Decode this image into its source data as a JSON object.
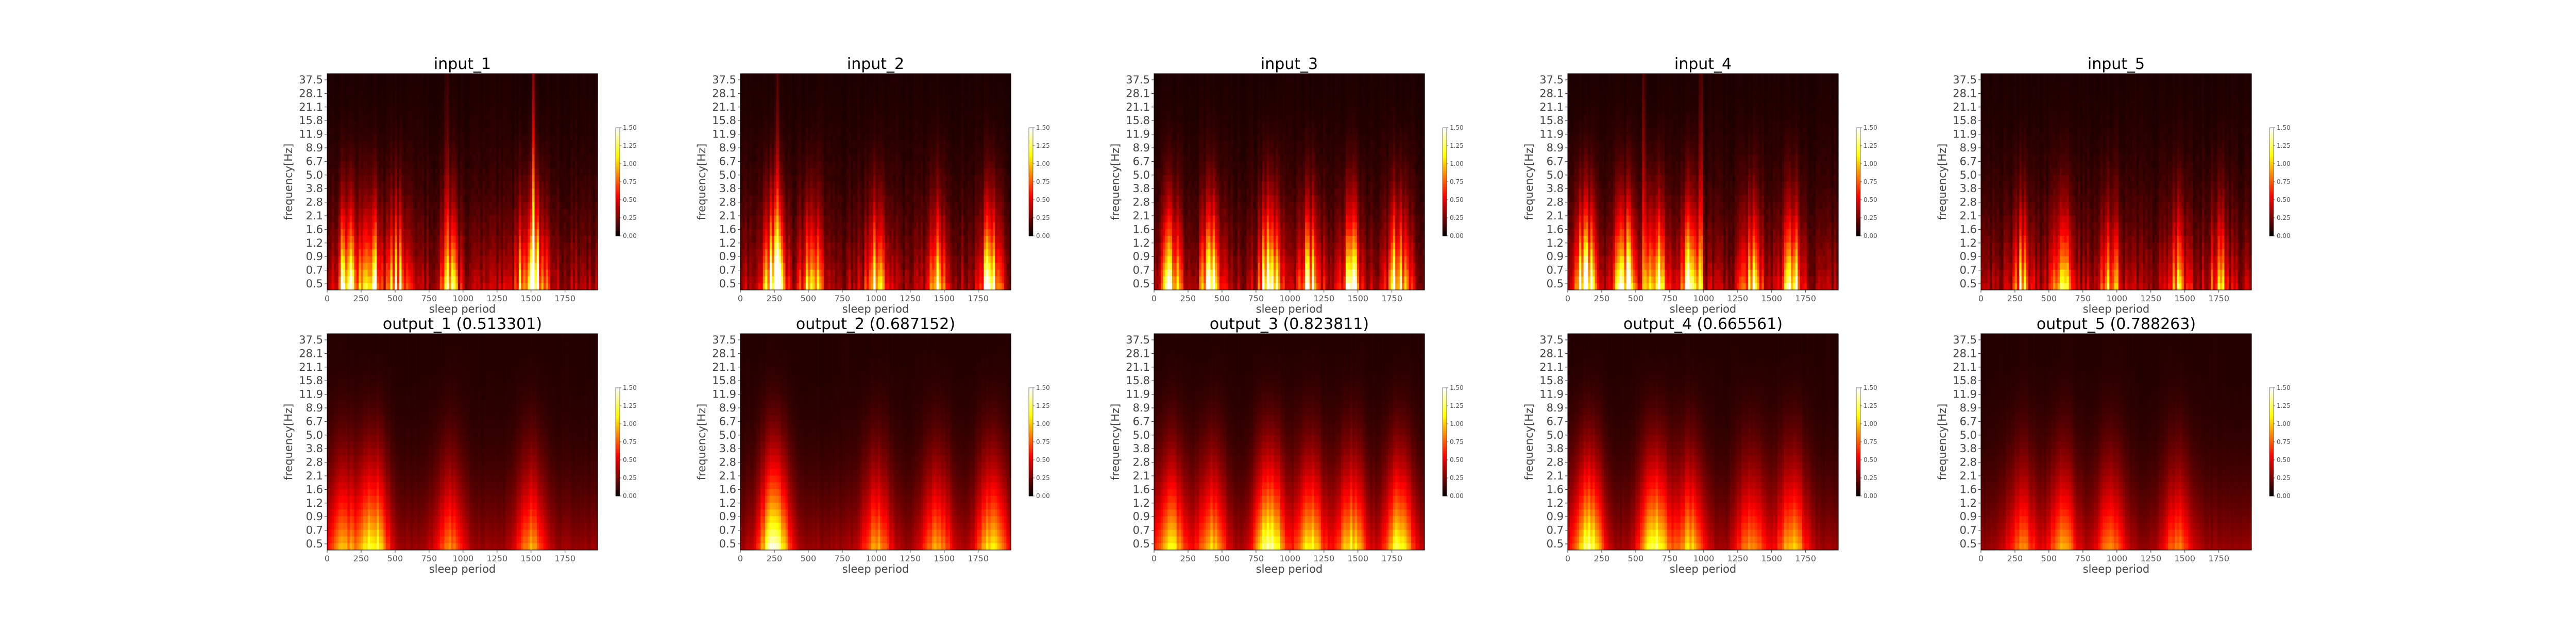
{
  "chart_data": {
    "type": "heatmap",
    "colormap": "hot",
    "xlabel": "sleep period",
    "ylabel": "frequency[Hz]",
    "xlim": [
      0,
      1990
    ],
    "x_ticks": [
      "0",
      "250",
      "500",
      "750",
      "1000",
      "1250",
      "1500",
      "1750"
    ],
    "y_ticks": [
      "37.5",
      "28.1",
      "21.1",
      "15.8",
      "11.9",
      "8.9",
      "6.7",
      "5.0",
      "3.8",
      "2.8",
      "2.1",
      "1.6",
      "1.2",
      "0.9",
      "0.7",
      "0.5"
    ],
    "colorbar_range": [
      0.0,
      1.5
    ],
    "colorbar_ticks": [
      "1.50",
      "1.25",
      "1.00",
      "0.75",
      "0.50",
      "0.25",
      "0.00"
    ],
    "panels": [
      {
        "title": "input_1",
        "hot_spots": [
          {
            "x": 150,
            "f": 1.0,
            "v": 1.2
          },
          {
            "x": 330,
            "f": 0.8,
            "v": 1.1
          },
          {
            "x": 520,
            "f": 0.9,
            "v": 0.8
          },
          {
            "x": 900,
            "f": 1.0,
            "v": 0.7
          },
          {
            "x": 1450,
            "f": 0.8,
            "v": 0.8
          },
          {
            "x": 1550,
            "f": 0.7,
            "v": 0.9
          }
        ],
        "streaks": [
          {
            "x": 1520,
            "v": 1.5
          },
          {
            "x": 880,
            "v": 0.6
          }
        ]
      },
      {
        "title": "input_2",
        "hot_spots": [
          {
            "x": 250,
            "f": 0.8,
            "v": 1.5
          },
          {
            "x": 520,
            "f": 0.9,
            "v": 0.9
          },
          {
            "x": 1000,
            "f": 0.8,
            "v": 0.9
          },
          {
            "x": 1450,
            "f": 0.8,
            "v": 0.8
          },
          {
            "x": 1850,
            "f": 0.8,
            "v": 1.2
          }
        ],
        "streaks": [
          {
            "x": 270,
            "v": 0.7
          }
        ]
      },
      {
        "title": "input_3",
        "hot_spots": [
          {
            "x": 120,
            "f": 0.8,
            "v": 1.1
          },
          {
            "x": 420,
            "f": 0.8,
            "v": 1.0
          },
          {
            "x": 850,
            "f": 0.8,
            "v": 1.4
          },
          {
            "x": 1150,
            "f": 0.8,
            "v": 1.1
          },
          {
            "x": 1450,
            "f": 0.8,
            "v": 1.0
          },
          {
            "x": 1800,
            "f": 0.8,
            "v": 1.2
          }
        ],
        "streaks": []
      },
      {
        "title": "input_4",
        "hot_spots": [
          {
            "x": 130,
            "f": 0.8,
            "v": 1.4
          },
          {
            "x": 420,
            "f": 0.9,
            "v": 1.1
          },
          {
            "x": 640,
            "f": 0.8,
            "v": 1.2
          },
          {
            "x": 900,
            "f": 0.9,
            "v": 1.0
          },
          {
            "x": 1350,
            "f": 0.8,
            "v": 0.8
          },
          {
            "x": 1650,
            "f": 0.8,
            "v": 1.0
          }
        ],
        "streaks": [
          {
            "x": 560,
            "v": 0.9
          },
          {
            "x": 980,
            "v": 0.8
          }
        ]
      },
      {
        "title": "input_5",
        "hot_spots": [
          {
            "x": 300,
            "f": 0.8,
            "v": 0.7
          },
          {
            "x": 600,
            "f": 0.8,
            "v": 0.8
          },
          {
            "x": 950,
            "f": 0.8,
            "v": 0.7
          },
          {
            "x": 1450,
            "f": 0.8,
            "v": 0.6
          },
          {
            "x": 1750,
            "f": 0.8,
            "v": 0.6
          }
        ],
        "streaks": []
      },
      {
        "title": "output_1 (0.513301)",
        "hot_spots": [
          {
            "x": 120,
            "f": 0.7,
            "v": 0.6
          },
          {
            "x": 340,
            "f": 0.7,
            "v": 0.9
          },
          {
            "x": 900,
            "f": 0.7,
            "v": 0.5
          },
          {
            "x": 1500,
            "f": 0.7,
            "v": 0.6
          }
        ],
        "streaks": []
      },
      {
        "title": "output_2 (0.687152)",
        "hot_spots": [
          {
            "x": 250,
            "f": 0.7,
            "v": 1.1
          },
          {
            "x": 1000,
            "f": 0.7,
            "v": 0.6
          },
          {
            "x": 1450,
            "f": 0.7,
            "v": 0.6
          },
          {
            "x": 1850,
            "f": 0.7,
            "v": 0.8
          }
        ],
        "streaks": []
      },
      {
        "title": "output_3 (0.823811)",
        "hot_spots": [
          {
            "x": 120,
            "f": 0.7,
            "v": 0.8
          },
          {
            "x": 420,
            "f": 0.7,
            "v": 0.7
          },
          {
            "x": 850,
            "f": 0.7,
            "v": 1.1
          },
          {
            "x": 1150,
            "f": 0.7,
            "v": 0.8
          },
          {
            "x": 1450,
            "f": 0.7,
            "v": 0.8
          },
          {
            "x": 1800,
            "f": 0.7,
            "v": 0.9
          }
        ],
        "streaks": []
      },
      {
        "title": "output_4 (0.665561)",
        "hot_spots": [
          {
            "x": 150,
            "f": 0.7,
            "v": 1.0
          },
          {
            "x": 640,
            "f": 0.7,
            "v": 1.0
          },
          {
            "x": 900,
            "f": 0.7,
            "v": 0.7
          },
          {
            "x": 1350,
            "f": 0.7,
            "v": 0.6
          },
          {
            "x": 1650,
            "f": 0.7,
            "v": 0.7
          }
        ],
        "streaks": []
      },
      {
        "title": "output_5 (0.788263)",
        "hot_spots": [
          {
            "x": 300,
            "f": 0.7,
            "v": 0.5
          },
          {
            "x": 600,
            "f": 0.7,
            "v": 0.6
          },
          {
            "x": 950,
            "f": 0.7,
            "v": 0.5
          },
          {
            "x": 1450,
            "f": 0.7,
            "v": 0.5
          }
        ],
        "streaks": []
      }
    ]
  }
}
